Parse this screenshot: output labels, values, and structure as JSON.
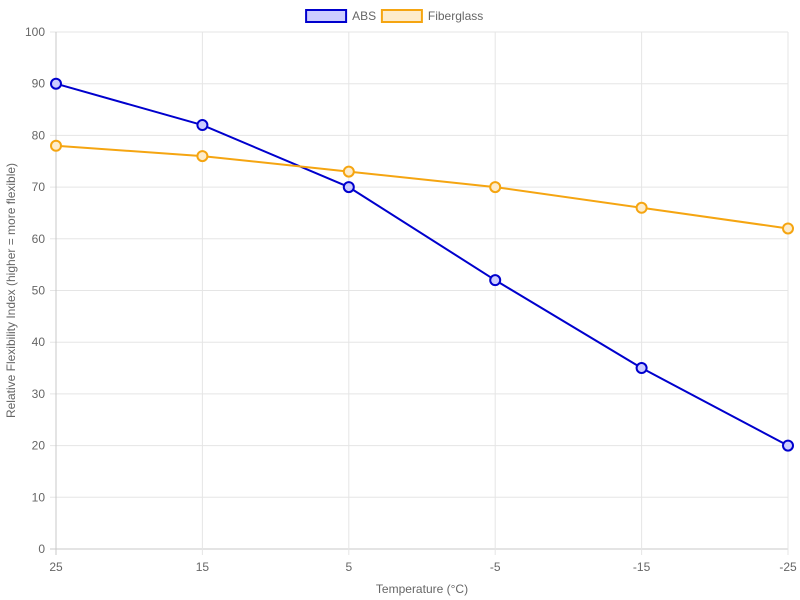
{
  "chart_data": {
    "type": "line",
    "title": "",
    "xlabel": "Temperature (°C)",
    "ylabel": "Relative Flexibility Index (higher = more flexible)",
    "categories": [
      "25",
      "15",
      "5",
      "-5",
      "-15",
      "-25"
    ],
    "ylim": [
      0,
      100
    ],
    "yticks": [
      "0",
      "10",
      "20",
      "30",
      "40",
      "50",
      "60",
      "70",
      "80",
      "90",
      "100"
    ],
    "grid": true,
    "legend_position": "top-center",
    "series": [
      {
        "name": "ABS",
        "values": [
          90,
          82,
          70,
          52,
          35,
          20
        ],
        "color": "#0000cd",
        "fill": "#ccccff"
      },
      {
        "name": "Fiberglass",
        "values": [
          78,
          76,
          73,
          70,
          66,
          62
        ],
        "color": "#f5a511",
        "fill": "#fdeccc"
      }
    ]
  }
}
